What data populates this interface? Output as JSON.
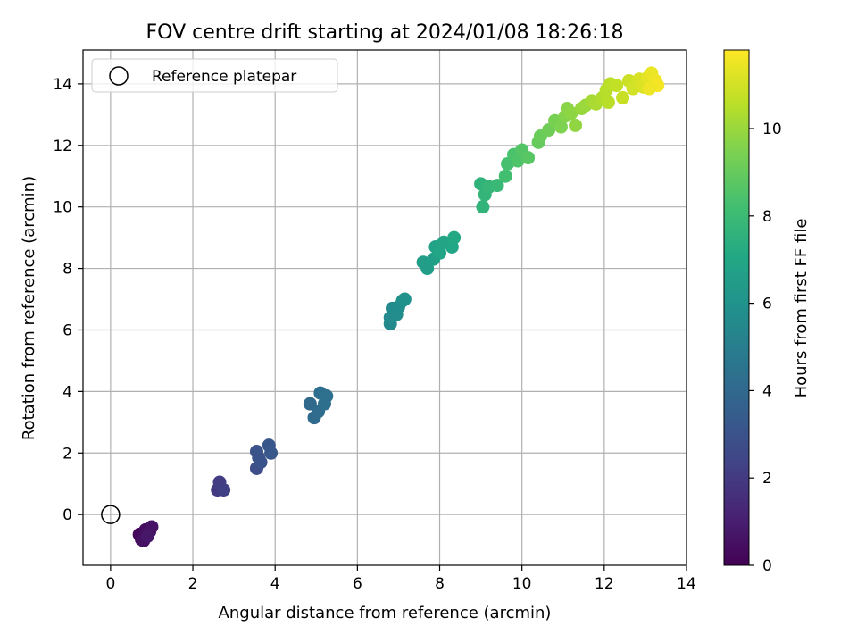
{
  "chart_data": {
    "type": "scatter",
    "title": "FOV centre drift starting at 2024/01/08 18:26:18",
    "xlabel": "Angular distance from reference (arcmin)",
    "ylabel": "Rotation from reference (arcmin)",
    "xlim": [
      -0.67,
      14.0
    ],
    "ylim": [
      -1.65,
      15.1
    ],
    "xticks": [
      0,
      2,
      4,
      6,
      8,
      10,
      12,
      14
    ],
    "yticks": [
      0,
      2,
      4,
      6,
      8,
      10,
      12,
      14
    ],
    "grid": true,
    "legend": {
      "placement": "top-left",
      "entries": [
        "Reference platepar"
      ]
    },
    "reference_point": {
      "name": "Reference platepar",
      "x": 0,
      "y": 0
    },
    "colorbar": {
      "label": "Hours from first FF file",
      "colormap": "viridis",
      "range": [
        0,
        11.8
      ],
      "ticks": [
        0,
        2,
        4,
        6,
        8,
        10
      ]
    },
    "series": [
      {
        "points": [
          [
            0.7,
            -0.65,
            0.2
          ],
          [
            0.75,
            -0.8,
            0.3
          ],
          [
            0.85,
            -0.5,
            0.4
          ],
          [
            0.95,
            -0.55,
            0.5
          ],
          [
            1.0,
            -0.4,
            0.6
          ],
          [
            0.8,
            -0.85,
            0.5
          ],
          [
            0.9,
            -0.7,
            0.7
          ],
          [
            2.6,
            0.8,
            2.0
          ],
          [
            2.65,
            1.05,
            2.1
          ],
          [
            2.75,
            0.8,
            2.2
          ],
          [
            3.55,
            1.5,
            2.8
          ],
          [
            3.6,
            1.85,
            2.9
          ],
          [
            3.55,
            2.05,
            3.0
          ],
          [
            3.65,
            1.7,
            3.05
          ],
          [
            3.85,
            2.25,
            3.15
          ],
          [
            3.9,
            2.0,
            3.2
          ],
          [
            4.85,
            3.6,
            4.0
          ],
          [
            4.95,
            3.15,
            4.1
          ],
          [
            5.05,
            3.35,
            4.15
          ],
          [
            5.1,
            3.95,
            4.25
          ],
          [
            5.2,
            3.6,
            4.3
          ],
          [
            5.25,
            3.85,
            4.4
          ],
          [
            6.8,
            6.2,
            5.5
          ],
          [
            6.8,
            6.4,
            5.55
          ],
          [
            6.85,
            6.7,
            5.6
          ],
          [
            6.95,
            6.5,
            5.7
          ],
          [
            7.0,
            6.75,
            5.75
          ],
          [
            7.1,
            6.95,
            5.85
          ],
          [
            7.15,
            7.0,
            5.9
          ],
          [
            7.6,
            8.2,
            6.5
          ],
          [
            7.7,
            8.0,
            6.55
          ],
          [
            7.85,
            8.3,
            6.65
          ],
          [
            7.9,
            8.7,
            6.75
          ],
          [
            8.0,
            8.5,
            6.85
          ],
          [
            8.1,
            8.85,
            6.9
          ],
          [
            8.3,
            8.7,
            7.0
          ],
          [
            8.35,
            9.0,
            7.1
          ],
          [
            9.0,
            10.75,
            7.6
          ],
          [
            9.05,
            10.0,
            7.65
          ],
          [
            9.1,
            10.4,
            7.7
          ],
          [
            9.2,
            10.65,
            7.8
          ],
          [
            9.4,
            10.7,
            7.9
          ],
          [
            9.6,
            11.0,
            8.2
          ],
          [
            9.65,
            11.4,
            8.3
          ],
          [
            9.8,
            11.7,
            8.4
          ],
          [
            9.9,
            11.5,
            8.5
          ],
          [
            10.0,
            11.85,
            8.6
          ],
          [
            10.15,
            11.6,
            8.7
          ],
          [
            10.4,
            12.1,
            9.0
          ],
          [
            10.45,
            12.3,
            9.1
          ],
          [
            10.65,
            12.5,
            9.2
          ],
          [
            10.8,
            12.8,
            9.4
          ],
          [
            10.95,
            12.6,
            9.5
          ],
          [
            11.05,
            12.95,
            9.6
          ],
          [
            11.1,
            13.2,
            9.7
          ],
          [
            11.2,
            13.05,
            9.8
          ],
          [
            11.3,
            12.65,
            9.85
          ],
          [
            11.45,
            13.2,
            9.95
          ],
          [
            11.55,
            13.3,
            10.0
          ],
          [
            11.7,
            13.45,
            10.2
          ],
          [
            11.8,
            13.35,
            10.3
          ],
          [
            11.95,
            13.55,
            10.4
          ],
          [
            12.05,
            13.8,
            10.5
          ],
          [
            12.15,
            14.0,
            10.6
          ],
          [
            12.1,
            13.4,
            10.55
          ],
          [
            12.3,
            13.95,
            10.7
          ],
          [
            12.45,
            13.55,
            10.8
          ],
          [
            12.6,
            14.1,
            10.9
          ],
          [
            12.7,
            13.85,
            11.0
          ],
          [
            12.85,
            14.15,
            11.1
          ],
          [
            12.95,
            13.9,
            11.2
          ],
          [
            13.05,
            14.2,
            11.3
          ],
          [
            13.15,
            14.35,
            11.45
          ],
          [
            13.25,
            14.1,
            11.55
          ],
          [
            13.3,
            13.95,
            11.65
          ],
          [
            13.1,
            13.85,
            11.5
          ]
        ]
      }
    ]
  }
}
